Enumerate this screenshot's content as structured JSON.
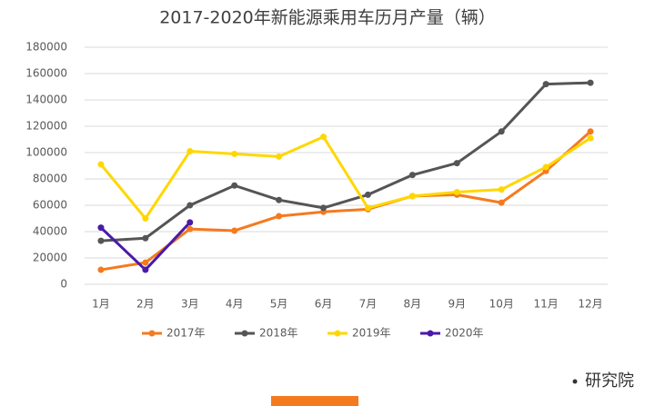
{
  "chart_data": {
    "type": "line",
    "title": "2017-2020年新能源乘用车历月产量（辆）",
    "categories": [
      "1月",
      "2月",
      "3月",
      "4月",
      "5月",
      "6月",
      "7月",
      "8月",
      "9月",
      "10月",
      "11月",
      "12月"
    ],
    "series": [
      {
        "name": "2017年",
        "color": "#f47a20",
        "values": [
          11000,
          16500,
          42000,
          40700,
          51700,
          55000,
          57000,
          67000,
          68000,
          62000,
          86000,
          116000
        ]
      },
      {
        "name": "2018年",
        "color": "#555555",
        "values": [
          33000,
          35000,
          60000,
          75000,
          64000,
          58000,
          68000,
          83000,
          92000,
          116000,
          152000,
          153000
        ]
      },
      {
        "name": "2019年",
        "color": "#ffd700",
        "values": [
          91000,
          50000,
          101000,
          99000,
          97000,
          112000,
          58000,
          67000,
          70000,
          72000,
          89000,
          111000
        ]
      },
      {
        "name": "2020年",
        "color": "#4b1aa8",
        "values": [
          43000,
          11000,
          47000,
          null,
          null,
          null,
          null,
          null,
          null,
          null,
          null,
          null
        ]
      }
    ],
    "ylim": [
      0,
      180000
    ],
    "yticks": [
      0,
      20000,
      40000,
      60000,
      80000,
      100000,
      120000,
      140000,
      160000,
      180000
    ],
    "grid": true,
    "legend": "bottom",
    "brand": "研究院"
  }
}
